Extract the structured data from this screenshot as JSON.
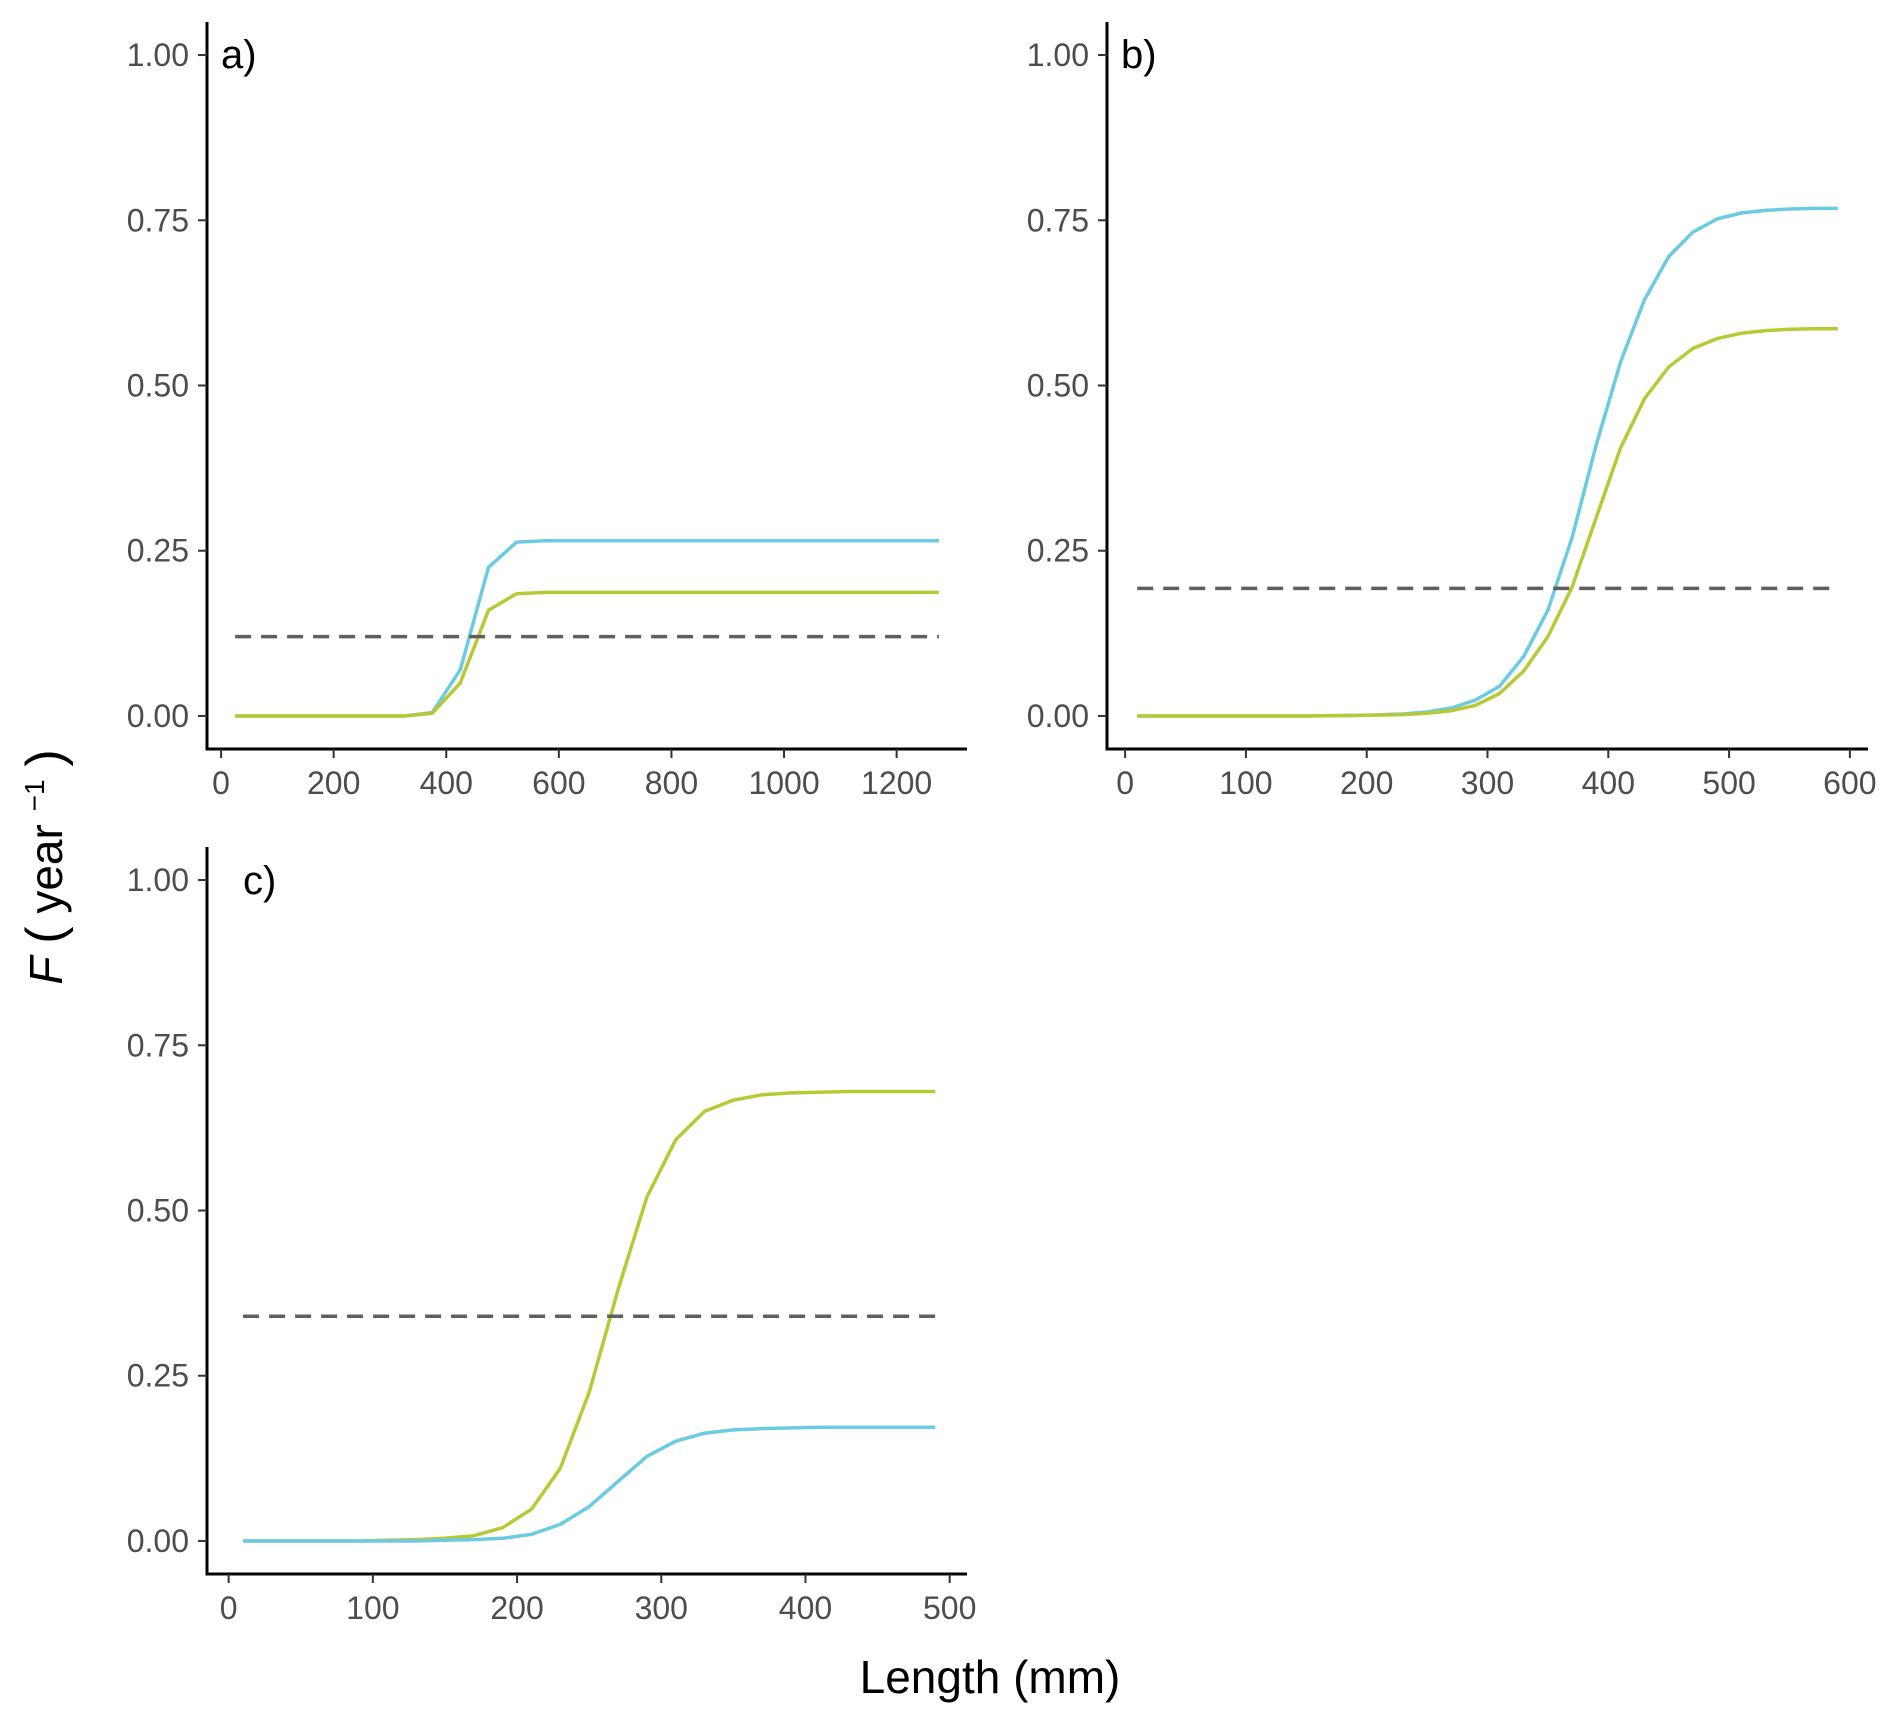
{
  "figure": {
    "ylabel": {
      "symbol": "F",
      "text": "year",
      "superscript": "−1"
    },
    "xlabel": "Length (mm)"
  },
  "chart_data": [
    {
      "type": "line",
      "panel_label": "a)",
      "xlabel": "Length (mm)",
      "ylabel": "F (year−1)",
      "xlim": [
        -25,
        1325
      ],
      "ylim": [
        -0.05,
        1.05
      ],
      "x_ticks": [
        0,
        200,
        400,
        600,
        800,
        1000,
        1200
      ],
      "y_ticks": [
        "0.00",
        "0.25",
        "0.50",
        "0.75",
        "1.00"
      ],
      "grid": false,
      "series": [
        {
          "color": "#6bcbe2",
          "style": "solid",
          "x": [
            25,
            75,
            125,
            175,
            225,
            275,
            325,
            375,
            425,
            475,
            525,
            575,
            625,
            700,
            800,
            900,
            1000,
            1100,
            1200,
            1275
          ],
          "y": [
            0,
            0,
            0,
            0,
            0,
            0,
            0,
            0.005,
            0.07,
            0.225,
            0.263,
            0.265,
            0.265,
            0.265,
            0.265,
            0.265,
            0.265,
            0.265,
            0.265,
            0.265
          ]
        },
        {
          "color": "#b8c936",
          "style": "solid",
          "x": [
            25,
            75,
            125,
            175,
            225,
            275,
            325,
            375,
            425,
            475,
            525,
            575,
            625,
            700,
            800,
            900,
            1000,
            1100,
            1200,
            1275
          ],
          "y": [
            0,
            0,
            0,
            0,
            0,
            0,
            0,
            0.004,
            0.05,
            0.16,
            0.185,
            0.187,
            0.187,
            0.187,
            0.187,
            0.187,
            0.187,
            0.187,
            0.187,
            0.187
          ]
        },
        {
          "color": "#5f5f5f",
          "style": "dashed",
          "x": [
            25,
            1275
          ],
          "y": [
            0.12,
            0.12
          ]
        }
      ]
    },
    {
      "type": "line",
      "panel_label": "b)",
      "xlabel": "Length (mm)",
      "ylabel": "F (year−1)",
      "xlim": [
        -15,
        615
      ],
      "ylim": [
        -0.05,
        1.05
      ],
      "x_ticks": [
        0,
        100,
        200,
        300,
        400,
        500,
        600
      ],
      "y_ticks": [
        "0.00",
        "0.25",
        "0.50",
        "0.75",
        "1.00"
      ],
      "grid": false,
      "series": [
        {
          "color": "#6bcbe2",
          "style": "solid",
          "x": [
            10,
            50,
            100,
            150,
            200,
            230,
            250,
            270,
            290,
            310,
            330,
            350,
            370,
            390,
            410,
            430,
            450,
            470,
            490,
            510,
            530,
            550,
            570,
            590
          ],
          "y": [
            0,
            0,
            0,
            0,
            0.001,
            0.003,
            0.006,
            0.012,
            0.024,
            0.045,
            0.09,
            0.16,
            0.27,
            0.41,
            0.535,
            0.63,
            0.695,
            0.732,
            0.752,
            0.761,
            0.765,
            0.767,
            0.768,
            0.768
          ]
        },
        {
          "color": "#b8c936",
          "style": "solid",
          "x": [
            10,
            50,
            100,
            150,
            200,
            230,
            250,
            270,
            290,
            310,
            330,
            350,
            370,
            390,
            410,
            430,
            450,
            470,
            490,
            510,
            530,
            550,
            570,
            590
          ],
          "y": [
            0,
            0,
            0,
            0,
            0.001,
            0.002,
            0.004,
            0.008,
            0.016,
            0.034,
            0.068,
            0.12,
            0.195,
            0.3,
            0.405,
            0.48,
            0.528,
            0.556,
            0.571,
            0.579,
            0.583,
            0.585,
            0.586,
            0.586
          ]
        },
        {
          "color": "#5f5f5f",
          "style": "dashed",
          "x": [
            10,
            590
          ],
          "y": [
            0.193,
            0.193
          ]
        }
      ]
    },
    {
      "type": "line",
      "panel_label": "c)",
      "xlabel": "Length (mm)",
      "ylabel": "F (year−1)",
      "xlim": [
        -15,
        512
      ],
      "ylim": [
        -0.05,
        1.05
      ],
      "x_ticks": [
        0,
        100,
        200,
        300,
        400,
        500
      ],
      "y_ticks": [
        "0.00",
        "0.25",
        "0.50",
        "0.75",
        "1.00"
      ],
      "grid": false,
      "series": [
        {
          "color": "#b8c936",
          "style": "solid",
          "x": [
            10,
            50,
            90,
            110,
            130,
            150,
            170,
            190,
            210,
            230,
            250,
            270,
            290,
            310,
            330,
            350,
            370,
            390,
            410,
            430,
            450,
            470,
            490
          ],
          "y": [
            0,
            0,
            0,
            0.001,
            0.002,
            0.004,
            0.008,
            0.02,
            0.048,
            0.11,
            0.225,
            0.38,
            0.52,
            0.607,
            0.65,
            0.667,
            0.675,
            0.678,
            0.679,
            0.68,
            0.68,
            0.68,
            0.68
          ]
        },
        {
          "color": "#6bcbe2",
          "style": "solid",
          "x": [
            10,
            50,
            90,
            110,
            130,
            150,
            170,
            190,
            210,
            230,
            250,
            270,
            290,
            310,
            330,
            350,
            370,
            390,
            410,
            430,
            450,
            470,
            490
          ],
          "y": [
            0,
            0,
            0,
            0,
            0,
            0.001,
            0.002,
            0.004,
            0.01,
            0.025,
            0.052,
            0.09,
            0.128,
            0.151,
            0.163,
            0.168,
            0.17,
            0.171,
            0.172,
            0.172,
            0.172,
            0.172,
            0.172
          ]
        },
        {
          "color": "#5f5f5f",
          "style": "dashed",
          "x": [
            10,
            490
          ],
          "y": [
            0.34,
            0.34
          ]
        }
      ]
    }
  ]
}
